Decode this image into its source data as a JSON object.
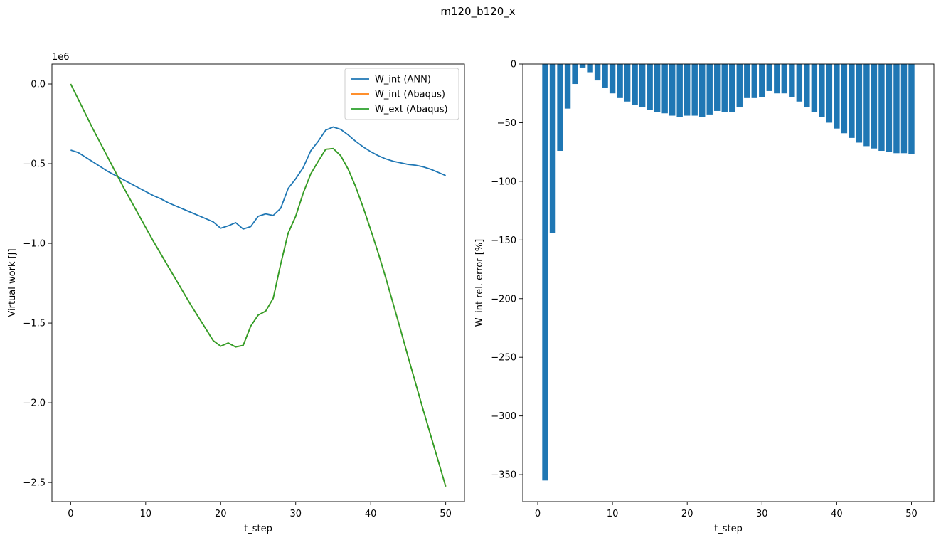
{
  "figure": {
    "title": "m120_b120_x"
  },
  "chart_data": [
    {
      "type": "line",
      "xlabel": "t_step",
      "ylabel": "Virtual work [J]",
      "y_scale_label": "1e6",
      "xlim": [
        -2.5,
        52.5
      ],
      "ylim": [
        -2.62,
        0.125
      ],
      "xticks": [
        0,
        10,
        20,
        30,
        40,
        50
      ],
      "yticks": [
        0.0,
        -0.5,
        -1.0,
        -1.5,
        -2.0,
        -2.5
      ],
      "xtick_labels": [
        "0",
        "10",
        "20",
        "30",
        "40",
        "50"
      ],
      "ytick_labels": [
        "0.0",
        "−0.5",
        "−1.0",
        "−1.5",
        "−2.0",
        "−2.5"
      ],
      "legend_position": "top-right",
      "grid": false,
      "series": [
        {
          "name": "W_int (ANN)",
          "color": "#1f77b4",
          "x": [
            0,
            1,
            2,
            3,
            4,
            5,
            6,
            7,
            8,
            9,
            10,
            11,
            12,
            13,
            14,
            15,
            16,
            17,
            18,
            19,
            20,
            21,
            22,
            23,
            24,
            25,
            26,
            27,
            28,
            29,
            30,
            31,
            32,
            33,
            34,
            35,
            36,
            37,
            38,
            39,
            40,
            41,
            42,
            43,
            44,
            45,
            46,
            47,
            48,
            49,
            50
          ],
          "y": [
            -0.415,
            -0.43,
            -0.46,
            -0.49,
            -0.52,
            -0.55,
            -0.575,
            -0.6,
            -0.625,
            -0.65,
            -0.675,
            -0.7,
            -0.72,
            -0.745,
            -0.765,
            -0.785,
            -0.805,
            -0.825,
            -0.845,
            -0.865,
            -0.905,
            -0.89,
            -0.87,
            -0.91,
            -0.895,
            -0.83,
            -0.815,
            -0.825,
            -0.78,
            -0.655,
            -0.595,
            -0.525,
            -0.42,
            -0.36,
            -0.29,
            -0.27,
            -0.285,
            -0.32,
            -0.36,
            -0.395,
            -0.425,
            -0.45,
            -0.47,
            -0.485,
            -0.495,
            -0.505,
            -0.51,
            -0.52,
            -0.535,
            -0.555,
            -0.575
          ]
        },
        {
          "name": "W_int (Abaqus)",
          "color": "#ff7f0e",
          "x": [
            0,
            1,
            2,
            3,
            4,
            5,
            6,
            7,
            8,
            9,
            10,
            11,
            12,
            13,
            14,
            15,
            16,
            17,
            18,
            19,
            20,
            21,
            22,
            23,
            24,
            25,
            26,
            27,
            28,
            29,
            30,
            31,
            32,
            33,
            34,
            35,
            36,
            37,
            38,
            39,
            40,
            41,
            42,
            43,
            44,
            45,
            46,
            47,
            48,
            49,
            50
          ],
          "y": [
            0.0,
            -0.095,
            -0.19,
            -0.285,
            -0.375,
            -0.465,
            -0.555,
            -0.645,
            -0.73,
            -0.815,
            -0.9,
            -0.985,
            -1.065,
            -1.145,
            -1.225,
            -1.305,
            -1.385,
            -1.46,
            -1.535,
            -1.61,
            -1.645,
            -1.625,
            -1.65,
            -1.64,
            -1.52,
            -1.45,
            -1.425,
            -1.345,
            -1.13,
            -0.935,
            -0.83,
            -0.685,
            -0.565,
            -0.485,
            -0.41,
            -0.405,
            -0.45,
            -0.535,
            -0.645,
            -0.775,
            -0.915,
            -1.06,
            -1.215,
            -1.38,
            -1.545,
            -1.715,
            -1.88,
            -2.045,
            -2.205,
            -2.365,
            -2.525
          ]
        },
        {
          "name": "W_ext (Abaqus)",
          "color": "#2ca02c",
          "x": [
            0,
            1,
            2,
            3,
            4,
            5,
            6,
            7,
            8,
            9,
            10,
            11,
            12,
            13,
            14,
            15,
            16,
            17,
            18,
            19,
            20,
            21,
            22,
            23,
            24,
            25,
            26,
            27,
            28,
            29,
            30,
            31,
            32,
            33,
            34,
            35,
            36,
            37,
            38,
            39,
            40,
            41,
            42,
            43,
            44,
            45,
            46,
            47,
            48,
            49,
            50
          ],
          "y": [
            0.0,
            -0.095,
            -0.19,
            -0.285,
            -0.375,
            -0.465,
            -0.555,
            -0.645,
            -0.73,
            -0.815,
            -0.9,
            -0.985,
            -1.065,
            -1.145,
            -1.225,
            -1.305,
            -1.385,
            -1.46,
            -1.535,
            -1.61,
            -1.645,
            -1.625,
            -1.65,
            -1.64,
            -1.52,
            -1.45,
            -1.425,
            -1.345,
            -1.13,
            -0.935,
            -0.83,
            -0.685,
            -0.565,
            -0.485,
            -0.41,
            -0.405,
            -0.45,
            -0.535,
            -0.645,
            -0.775,
            -0.915,
            -1.06,
            -1.215,
            -1.38,
            -1.545,
            -1.715,
            -1.88,
            -2.045,
            -2.205,
            -2.365,
            -2.525
          ]
        }
      ]
    },
    {
      "type": "bar",
      "xlabel": "t_step",
      "ylabel": "W_int rel. error [%]",
      "xlim": [
        -2.0,
        53.0
      ],
      "ylim": [
        -373,
        0
      ],
      "xticks": [
        0,
        10,
        20,
        30,
        40,
        50
      ],
      "yticks": [
        0,
        -50,
        -100,
        -150,
        -200,
        -250,
        -300,
        -350
      ],
      "xtick_labels": [
        "0",
        "10",
        "20",
        "30",
        "40",
        "50"
      ],
      "ytick_labels": [
        "0",
        "−50",
        "−100",
        "−150",
        "−200",
        "−250",
        "−300",
        "−350"
      ],
      "grid": false,
      "bar_color": "#1f77b4",
      "x": [
        1,
        2,
        3,
        4,
        5,
        6,
        7,
        8,
        9,
        10,
        11,
        12,
        13,
        14,
        15,
        16,
        17,
        18,
        19,
        20,
        21,
        22,
        23,
        24,
        25,
        26,
        27,
        28,
        29,
        30,
        31,
        32,
        33,
        34,
        35,
        36,
        37,
        38,
        39,
        40,
        41,
        42,
        43,
        44,
        45,
        46,
        47,
        48,
        49,
        50
      ],
      "values": [
        -355,
        -144,
        -74,
        -38,
        -17,
        -3,
        -7,
        -14,
        -20,
        -25,
        -29,
        -32,
        -35,
        -37,
        -39,
        -41,
        -42,
        -44,
        -45,
        -44,
        -44,
        -45,
        -43,
        -40,
        -41,
        -41,
        -37,
        -29,
        -29,
        -28,
        -23,
        -25,
        -25,
        -28,
        -32,
        -37,
        -41,
        -45,
        -50,
        -55,
        -59,
        -63,
        -67,
        -70,
        -72,
        -74,
        -75,
        -76,
        -76,
        -77
      ]
    }
  ]
}
